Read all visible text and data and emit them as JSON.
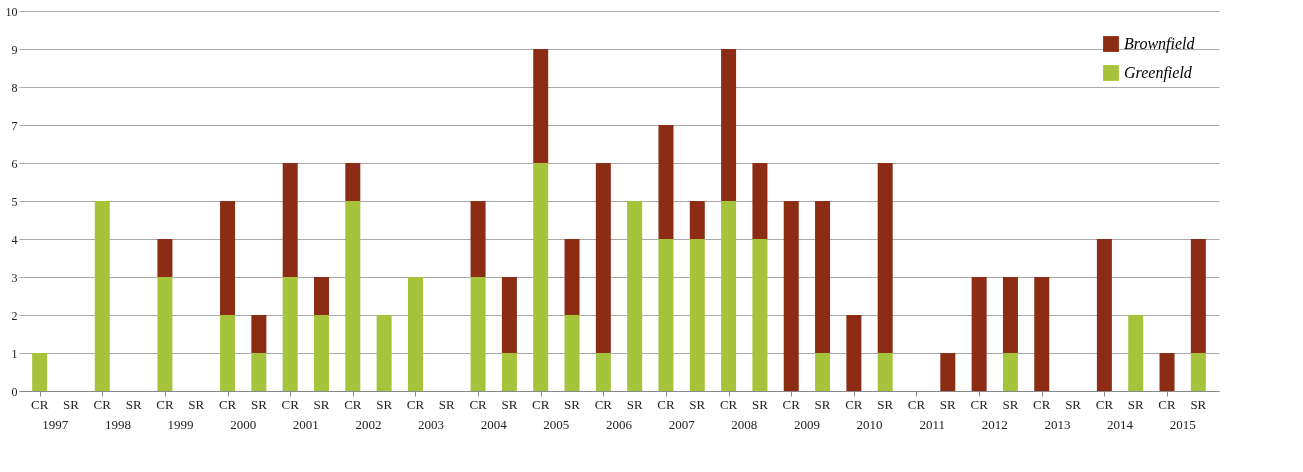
{
  "chart_data": {
    "type": "bar",
    "stacked": true,
    "categories": [
      "CR",
      "SR",
      "CR",
      "SR",
      "CR",
      "SR",
      "CR",
      "SR",
      "CR",
      "SR",
      "CR",
      "SR",
      "CR",
      "SR",
      "CR",
      "SR",
      "CR",
      "SR",
      "CR",
      "SR",
      "CR",
      "SR",
      "CR",
      "SR",
      "CR",
      "SR",
      "CR",
      "SR",
      "CR",
      "SR",
      "CR",
      "SR",
      "CR",
      "SR",
      "CR",
      "SR",
      "CR",
      "SR"
    ],
    "annotations": [
      "1997",
      "1998",
      "1999",
      "2000",
      "2001",
      "2002",
      "2003",
      "2004",
      "2005",
      "2006",
      "2007",
      "2008",
      "2009",
      "2010",
      "2011",
      "2012",
      "2013",
      "2014",
      "2015"
    ],
    "series": [
      {
        "name": "Greenfield",
        "color": "#a5c33b",
        "values": [
          1,
          0,
          5,
          0,
          3,
          0,
          2,
          1,
          3,
          2,
          5,
          2,
          3,
          0,
          3,
          1,
          6,
          2,
          1,
          5,
          4,
          4,
          5,
          4,
          0,
          1,
          0,
          1,
          0,
          0,
          0,
          1,
          0,
          0,
          0,
          2,
          0,
          1
        ]
      },
      {
        "name": "Brownfield",
        "color": "#8c2c14",
        "values": [
          0,
          0,
          0,
          0,
          1,
          0,
          3,
          1,
          3,
          1,
          1,
          0,
          0,
          0,
          2,
          2,
          3,
          2,
          5,
          0,
          3,
          1,
          4,
          2,
          5,
          4,
          2,
          5,
          0,
          1,
          3,
          2,
          3,
          0,
          4,
          0,
          1,
          3
        ]
      }
    ],
    "ylim": [
      0,
      10
    ],
    "yticks": [
      0,
      1,
      2,
      3,
      4,
      5,
      6,
      7,
      8,
      9,
      10
    ],
    "grid": "y",
    "legend": "top right"
  }
}
